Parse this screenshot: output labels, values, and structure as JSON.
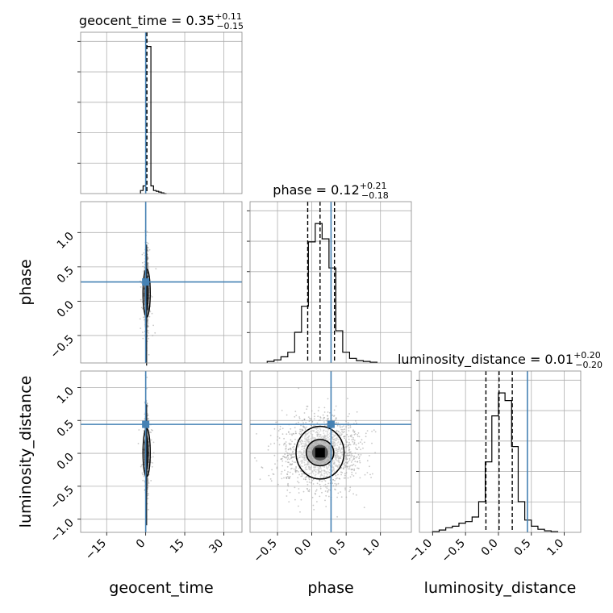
{
  "chart_data": {
    "type": "corner",
    "parameters": [
      "geocent_time",
      "phase",
      "luminosity_distance"
    ],
    "truths": [
      0.0,
      0.28,
      0.44
    ],
    "titles": [
      {
        "label": "geocent_time = 0.35",
        "sup": "+0.11",
        "sub": "−0.15"
      },
      {
        "label": "phase = 0.12",
        "sup": "+0.21",
        "sub": "−0.18"
      },
      {
        "label": "luminosity_distance = 0.01",
        "sup": "+0.20",
        "sub": "−0.20"
      }
    ],
    "axes": {
      "geocent_time": {
        "range": [
          -25,
          37
        ],
        "ticks": [
          -15,
          0,
          15,
          30
        ],
        "tick_labels": [
          "−15",
          "0",
          "15",
          "30"
        ]
      },
      "phase": {
        "range": [
          -0.9,
          1.45
        ],
        "ticks": [
          -0.5,
          0.0,
          0.5,
          1.0
        ],
        "tick_labels": [
          "−0.5",
          "0.0",
          "0.5",
          "1.0"
        ]
      },
      "luminosity_distance": {
        "range": [
          -1.2,
          1.25
        ],
        "ticks": [
          -1.0,
          -0.5,
          0.0,
          0.5,
          1.0
        ],
        "tick_labels": [
          "−1.0",
          "−0.5",
          "0.0",
          "0.5",
          "1.0"
        ]
      }
    },
    "y_axis_tick_labels": {
      "phase": [
        "−0.5",
        "0.0",
        "0.5",
        "1.0"
      ],
      "luminosity_distance": [
        "−1.0",
        "−0.5",
        "0.0",
        "0.5",
        "1.0"
      ]
    },
    "quantile_lines": {
      "geocent_time": [
        0.2,
        0.35,
        0.46
      ],
      "phase": [
        -0.06,
        0.12,
        0.33
      ],
      "luminosity_distance": [
        -0.19,
        0.01,
        0.21
      ]
    },
    "histograms": {
      "geocent_time": {
        "edges": [
          -2,
          -1,
          0,
          1,
          2,
          3,
          4,
          5,
          6,
          7,
          8
        ],
        "counts": [
          0.02,
          0.05,
          0.96,
          0.96,
          0.05,
          0.02,
          0.015,
          0.01,
          0.005,
          0.0
        ]
      },
      "phase": {
        "edges": [
          -0.65,
          -0.55,
          -0.45,
          -0.35,
          -0.25,
          -0.15,
          -0.05,
          0.05,
          0.15,
          0.25,
          0.35,
          0.45,
          0.55,
          0.65,
          0.75,
          0.85,
          0.95
        ],
        "counts": [
          0.01,
          0.02,
          0.04,
          0.07,
          0.2,
          0.37,
          0.79,
          0.91,
          0.81,
          0.62,
          0.21,
          0.07,
          0.03,
          0.015,
          0.01,
          0.005
        ]
      },
      "luminosity_distance": {
        "edges": [
          -1.0,
          -0.9,
          -0.8,
          -0.7,
          -0.6,
          -0.5,
          -0.4,
          -0.3,
          -0.2,
          -0.1,
          0.0,
          0.1,
          0.2,
          0.3,
          0.4,
          0.5,
          0.6,
          0.7,
          0.8,
          0.9
        ],
        "counts": [
          0.005,
          0.015,
          0.03,
          0.04,
          0.06,
          0.07,
          0.1,
          0.2,
          0.46,
          0.76,
          0.91,
          0.86,
          0.56,
          0.2,
          0.08,
          0.04,
          0.02,
          0.01,
          0.005
        ]
      }
    },
    "contours": {
      "phase_luminosity_distance": [
        {
          "level": "inner",
          "center": [
            0.12,
            0.01
          ],
          "half_width": [
            0.07,
            0.07
          ]
        },
        {
          "level": "middle",
          "center": [
            0.12,
            0.01
          ],
          "half_width": [
            0.2,
            0.2
          ]
        },
        {
          "level": "outer",
          "center": [
            0.12,
            0.01
          ],
          "half_width": [
            0.35,
            0.4
          ]
        }
      ]
    },
    "colors": {
      "truth": "#4682b4",
      "hist": "#000000",
      "grid": "#b0b0b0",
      "scatter": "#9a9a9a"
    },
    "grid": true
  }
}
